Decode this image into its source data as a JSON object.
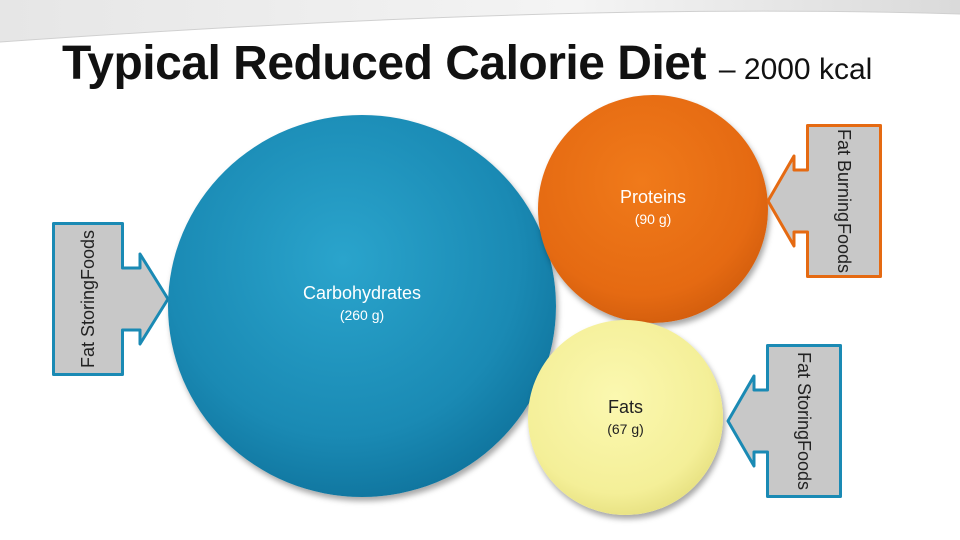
{
  "title": {
    "main": "Typical Reduced Calorie Diet",
    "sub": "– 2000 kcal"
  },
  "nutrients": [
    {
      "name": "Carbohydrates",
      "amount": "(260 g)",
      "color": "#1a8ab4"
    },
    {
      "name": "Proteins",
      "amount": "(90 g)",
      "color": "#e56a12"
    },
    {
      "name": "Fats",
      "amount": "(67 g)",
      "color": "#f4ef98"
    }
  ],
  "callouts": [
    {
      "line1": "Fat Storing",
      "line2": "Foods",
      "border_color": "#1a8ab4"
    },
    {
      "line1": "Fat Burning",
      "line2": "Foods",
      "border_color": "#e56a12"
    },
    {
      "line1": "Fat Storing",
      "line2": "Foods",
      "border_color": "#1a8ab4"
    }
  ],
  "colors": {
    "callout_fill": "#c8c8c8",
    "title_text": "#111111"
  }
}
